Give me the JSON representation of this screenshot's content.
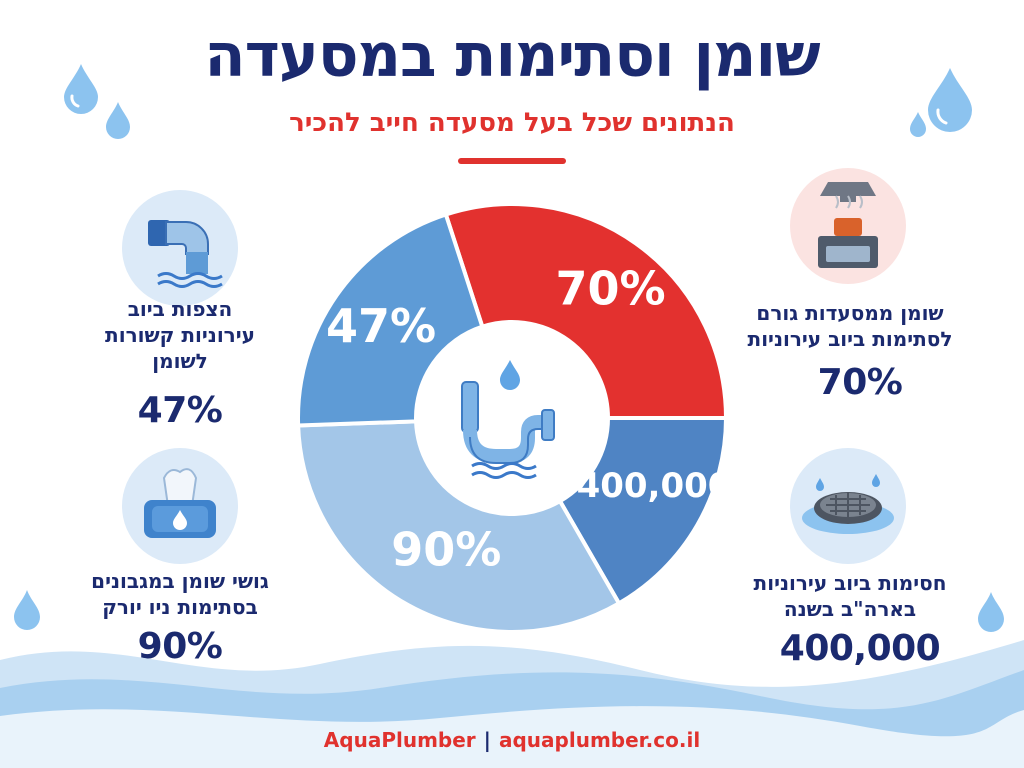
{
  "header": {
    "title": "שומן וסתימות במסעדה",
    "subtitle": "הנתונים שכל בעל מסעדה חייב להכיר"
  },
  "stats": {
    "restaurant_grease": {
      "text_line1": "שומן ממסעדות גורם",
      "text_line2": "לסתימות ביוב עירוניות",
      "value": "70%",
      "icon": "stove-icon"
    },
    "blockages_per_year": {
      "text_line1": "חסימות ביוב עירוניות",
      "text_line2": "בארה\"ב בשנה",
      "value": "400,000",
      "icon": "drain-grate-icon"
    },
    "sewer_overflows": {
      "text_line1": "הצפות ביוב",
      "text_line2": "עירוניות קשורות",
      "text_line3": "לשומן",
      "value": "47%",
      "icon": "pipe-outflow-icon"
    },
    "grease_wipes": {
      "text_line1": "גושי שומן במגבונים",
      "text_line2": "בסתימות ניו יורק",
      "value": "90%",
      "icon": "wipes-icon"
    }
  },
  "chart_data": {
    "type": "pie",
    "style": "donut",
    "center_icon": "drain-pipe-icon",
    "slices": [
      {
        "label": "70%",
        "color": "#e3312f"
      },
      {
        "label": "400,000",
        "color": "#4f84c4"
      },
      {
        "label": "90%",
        "color": "#a3c6e8"
      },
      {
        "label": "47%",
        "color": "#5e9bd6"
      }
    ]
  },
  "footer": {
    "brand": "AquaPlumber",
    "separator": "|",
    "website": "aquaplumber.co.il"
  },
  "colors": {
    "title": "#1b2a6f",
    "accent": "#e0322e",
    "water": "#7fb7e6"
  }
}
